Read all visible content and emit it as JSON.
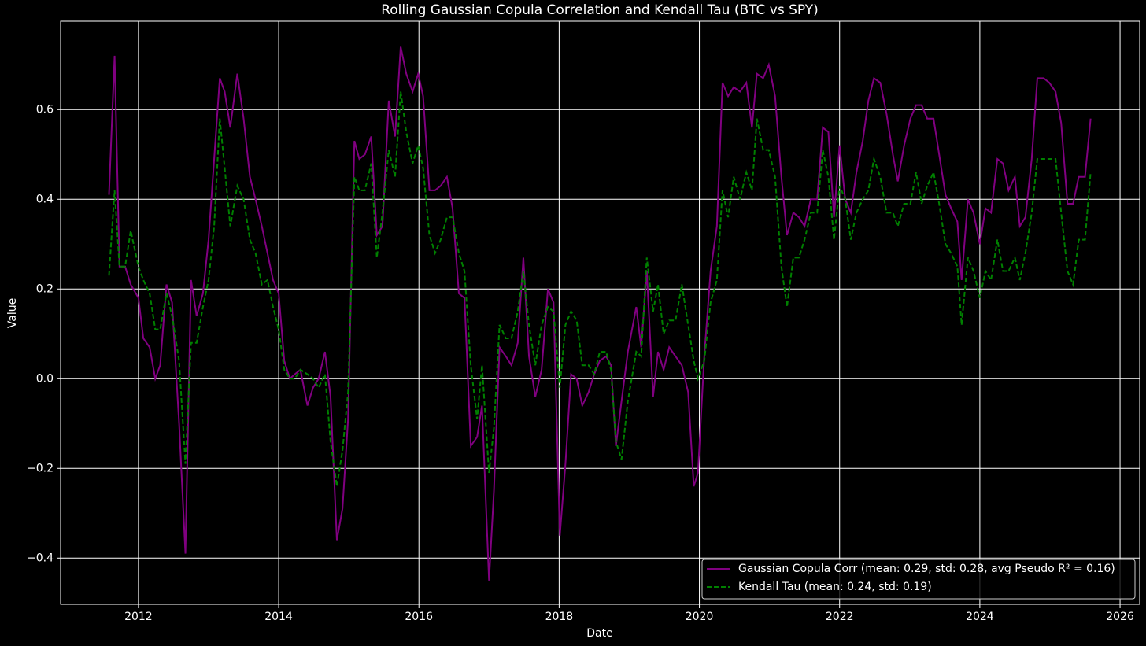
{
  "chart_data": {
    "type": "line",
    "title": "Rolling Gaussian Copula Correlation and Kendall Tau (BTC vs SPY)",
    "x_label": "Date",
    "y_label": "Value",
    "x": [
      2011.58,
      2011.66,
      2011.73,
      2011.81,
      2011.89,
      2012.0,
      2012.07,
      2012.16,
      2012.24,
      2012.31,
      2012.4,
      2012.48,
      2012.58,
      2012.67,
      2012.75,
      2012.83,
      2012.92,
      2013.0,
      2013.08,
      2013.16,
      2013.23,
      2013.31,
      2013.41,
      2013.5,
      2013.59,
      2013.67,
      2013.76,
      2013.84,
      2013.92,
      2014.0,
      2014.08,
      2014.16,
      2014.23,
      2014.31,
      2014.41,
      2014.49,
      2014.57,
      2014.66,
      2014.74,
      2014.83,
      2014.91,
      2014.99,
      2015.08,
      2015.15,
      2015.23,
      2015.32,
      2015.4,
      2015.48,
      2015.57,
      2015.66,
      2015.74,
      2015.82,
      2015.91,
      2015.99,
      2016.06,
      2016.15,
      2016.23,
      2016.31,
      2016.4,
      2016.48,
      2016.57,
      2016.65,
      2016.74,
      2016.83,
      2016.9,
      2017.0,
      2017.07,
      2017.15,
      2017.24,
      2017.32,
      2017.41,
      2017.49,
      2017.57,
      2017.66,
      2017.75,
      2017.84,
      2017.92,
      2018.01,
      2018.09,
      2018.17,
      2018.25,
      2018.33,
      2018.42,
      2018.5,
      2018.58,
      2018.67,
      2018.74,
      2018.81,
      2018.89,
      2018.98,
      2019.1,
      2019.17,
      2019.25,
      2019.34,
      2019.41,
      2019.49,
      2019.57,
      2019.66,
      2019.75,
      2019.84,
      2019.92,
      2019.98,
      2020.07,
      2020.16,
      2020.25,
      2020.33,
      2020.41,
      2020.49,
      2020.58,
      2020.67,
      2020.75,
      2020.82,
      2020.91,
      2020.99,
      2021.08,
      2021.17,
      2021.25,
      2021.34,
      2021.42,
      2021.5,
      2021.59,
      2021.68,
      2021.76,
      2021.84,
      2021.92,
      2022.0,
      2022.08,
      2022.16,
      2022.24,
      2022.33,
      2022.41,
      2022.49,
      2022.58,
      2022.67,
      2022.76,
      2022.83,
      2022.92,
      2023.01,
      2023.09,
      2023.17,
      2023.25,
      2023.34,
      2023.42,
      2023.51,
      2023.59,
      2023.68,
      2023.74,
      2023.83,
      2023.91,
      2024.0,
      2024.08,
      2024.16,
      2024.25,
      2024.33,
      2024.41,
      2024.5,
      2024.57,
      2024.65,
      2024.74,
      2024.82,
      2024.91,
      2024.99,
      2025.08,
      2025.16,
      2025.25,
      2025.33,
      2025.41,
      2025.5,
      2025.58
    ],
    "series": [
      {
        "name": "Gaussian Copula Corr (mean: 0.29, std: 0.28, avg Pseudo R² = 0.16)",
        "color": "#800080",
        "linestyle": "solid",
        "values": [
          0.41,
          0.72,
          0.25,
          0.25,
          0.21,
          0.18,
          0.09,
          0.07,
          0,
          0.03,
          0.21,
          0.17,
          -0.1,
          -0.39,
          0.22,
          0.14,
          0.19,
          0.31,
          0.49,
          0.67,
          0.64,
          0.56,
          0.68,
          0.58,
          0.45,
          0.4,
          0.34,
          0.28,
          0.22,
          0.19,
          0.04,
          0,
          0.01,
          0.02,
          -0.06,
          -0.02,
          0,
          0.06,
          -0.04,
          -0.36,
          -0.29,
          -0.09,
          0.53,
          0.49,
          0.5,
          0.54,
          0.32,
          0.34,
          0.62,
          0.54,
          0.74,
          0.68,
          0.64,
          0.68,
          0.63,
          0.42,
          0.42,
          0.43,
          0.45,
          0.38,
          0.19,
          0.18,
          -0.15,
          -0.13,
          -0.06,
          -0.45,
          -0.25,
          0.07,
          0.05,
          0.03,
          0.08,
          0.27,
          0.05,
          -0.04,
          0.02,
          0.2,
          0.17,
          -0.35,
          -0.19,
          0.01,
          0,
          -0.06,
          -0.03,
          0.01,
          0.04,
          0.05,
          0.03,
          -0.15,
          -0.05,
          0.06,
          0.16,
          0.07,
          0.24,
          -0.04,
          0.06,
          0.02,
          0.07,
          0.05,
          0.03,
          -0.03,
          -0.24,
          -0.21,
          0.05,
          0.24,
          0.34,
          0.66,
          0.63,
          0.65,
          0.64,
          0.66,
          0.56,
          0.68,
          0.67,
          0.7,
          0.63,
          0.45,
          0.32,
          0.37,
          0.36,
          0.34,
          0.4,
          0.4,
          0.56,
          0.55,
          0.36,
          0.52,
          0.4,
          0.37,
          0.46,
          0.53,
          0.62,
          0.67,
          0.66,
          0.59,
          0.5,
          0.44,
          0.52,
          0.58,
          0.61,
          0.61,
          0.58,
          0.58,
          0.5,
          0.41,
          0.38,
          0.35,
          0.22,
          0.4,
          0.37,
          0.3,
          0.38,
          0.37,
          0.49,
          0.48,
          0.42,
          0.45,
          0.34,
          0.36,
          0.49,
          0.67,
          0.67,
          0.66,
          0.64,
          0.57,
          0.39,
          0.39,
          0.45,
          0.45,
          0.58
        ]
      },
      {
        "name": "Kendall Tau (mean: 0.24, std: 0.19)",
        "color": "#008000",
        "linestyle": "dashed",
        "values": [
          0.23,
          0.42,
          0.25,
          0.25,
          0.33,
          0.25,
          0.22,
          0.19,
          0.11,
          0.11,
          0.19,
          0.14,
          0.04,
          -0.19,
          0.08,
          0.08,
          0.16,
          0.22,
          0.34,
          0.58,
          0.47,
          0.34,
          0.43,
          0.4,
          0.31,
          0.28,
          0.21,
          0.22,
          0.16,
          0.11,
          0.02,
          0,
          0,
          0.02,
          0.01,
          0,
          -0.02,
          0.01,
          -0.14,
          -0.24,
          -0.16,
          -0.03,
          0.45,
          0.42,
          0.42,
          0.48,
          0.27,
          0.37,
          0.51,
          0.45,
          0.64,
          0.55,
          0.48,
          0.52,
          0.47,
          0.32,
          0.28,
          0.31,
          0.36,
          0.36,
          0.28,
          0.24,
          0.03,
          -0.09,
          0.03,
          -0.21,
          -0.11,
          0.12,
          0.09,
          0.09,
          0.15,
          0.24,
          0.12,
          0.03,
          0.12,
          0.16,
          0.15,
          -0.02,
          0.12,
          0.15,
          0.13,
          0.03,
          0.03,
          0.01,
          0.06,
          0.06,
          0.02,
          -0.14,
          -0.18,
          -0.05,
          0.06,
          0.05,
          0.27,
          0.15,
          0.21,
          0.1,
          0.13,
          0.13,
          0.21,
          0.12,
          0.04,
          0,
          0.04,
          0.17,
          0.22,
          0.42,
          0.36,
          0.45,
          0.4,
          0.46,
          0.42,
          0.58,
          0.51,
          0.51,
          0.45,
          0.25,
          0.16,
          0.27,
          0.27,
          0.31,
          0.37,
          0.37,
          0.51,
          0.45,
          0.31,
          0.43,
          0.4,
          0.31,
          0.37,
          0.4,
          0.42,
          0.49,
          0.45,
          0.37,
          0.37,
          0.34,
          0.39,
          0.39,
          0.46,
          0.39,
          0.43,
          0.46,
          0.39,
          0.3,
          0.28,
          0.25,
          0.12,
          0.27,
          0.24,
          0.18,
          0.24,
          0.22,
          0.31,
          0.24,
          0.24,
          0.27,
          0.22,
          0.28,
          0.37,
          0.49,
          0.49,
          0.49,
          0.49,
          0.37,
          0.24,
          0.21,
          0.31,
          0.31,
          0.46
        ]
      }
    ],
    "xlim": [
      2010.89,
      2026.28
    ],
    "xticks": [
      2012,
      2014,
      2016,
      2018,
      2020,
      2022,
      2024,
      2026
    ],
    "ylim": [
      -0.503,
      0.797
    ],
    "yticks": [
      {
        "value": -0.4,
        "label": "−0.4"
      },
      {
        "value": -0.2,
        "label": "−0.2"
      },
      {
        "value": 0,
        "label": "0.0"
      },
      {
        "value": 0.2,
        "label": "0.2"
      },
      {
        "value": 0.4,
        "label": "0.4"
      },
      {
        "value": 0.6,
        "label": "0.6"
      }
    ],
    "grid": true,
    "legend": "lower right"
  }
}
